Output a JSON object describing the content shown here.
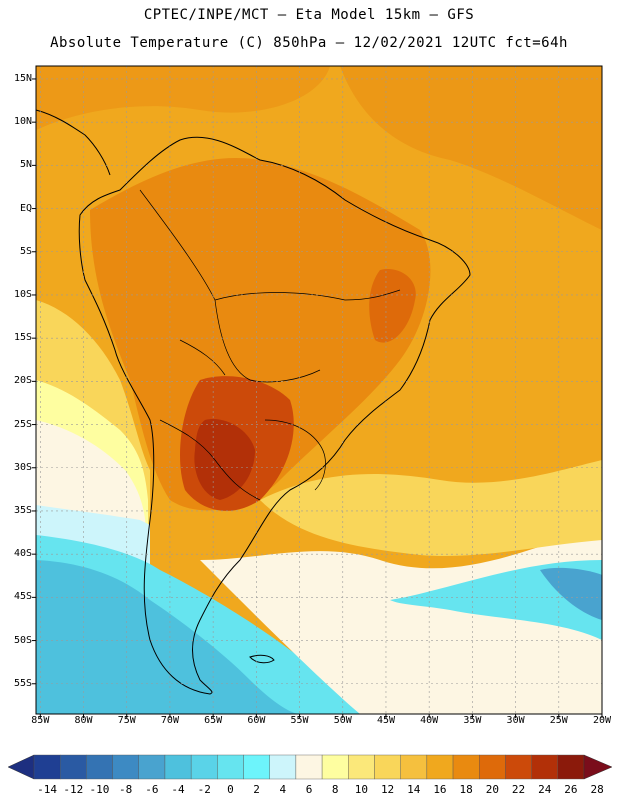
{
  "header": {
    "line1": "CPTEC/INPE/MCT –  Eta Model 15km – GFS",
    "line2": "Absolute Temperature (C) 850hPa – 12/02/2021 12UTC fct=64h"
  },
  "map": {
    "lat_labels": [
      "15N",
      "10N",
      "5N",
      "EQ",
      "5S",
      "10S",
      "15S",
      "20S",
      "25S",
      "30S",
      "35S",
      "40S",
      "45S",
      "50S",
      "55S"
    ],
    "lat_values": [
      15,
      10,
      5,
      0,
      -5,
      -10,
      -15,
      -20,
      -25,
      -30,
      -35,
      -40,
      -45,
      -50,
      -55
    ],
    "lon_labels": [
      "85W",
      "80W",
      "75W",
      "70W",
      "65W",
      "60W",
      "55W",
      "50W",
      "45W",
      "40W",
      "35W",
      "30W",
      "25W",
      "20W"
    ],
    "lon_values": [
      -85,
      -80,
      -75,
      -70,
      -65,
      -60,
      -55,
      -50,
      -45,
      -40,
      -35,
      -30,
      -25,
      -20
    ],
    "extent": {
      "lon_min": -85.5,
      "lon_max": -20,
      "lat_max": 16.5,
      "lat_min": -58.5
    }
  },
  "colorbar": {
    "labels": [
      "-14",
      "-12",
      "-10",
      "-8",
      "-6",
      "-4",
      "-2",
      "0",
      "2",
      "4",
      "6",
      "8",
      "10",
      "12",
      "14",
      "16",
      "18",
      "20",
      "22",
      "24",
      "26",
      "28"
    ],
    "colors": [
      "#1f3f93",
      "#2a5aa3",
      "#3473b3",
      "#3d8ac3",
      "#49a3cf",
      "#4ec1dd",
      "#5ad3e8",
      "#66e4ef",
      "#6df4fb",
      "#cdf5fb",
      "#fdf6e3",
      "#fefea0",
      "#fbe87a",
      "#f9d65a",
      "#f5c03e",
      "#f0a81e",
      "#e98a10",
      "#de6a0a",
      "#cc4a0a",
      "#b23008",
      "#8b1a0b"
    ],
    "low_color": "#1d2f80",
    "high_color": "#7a0d1b"
  }
}
